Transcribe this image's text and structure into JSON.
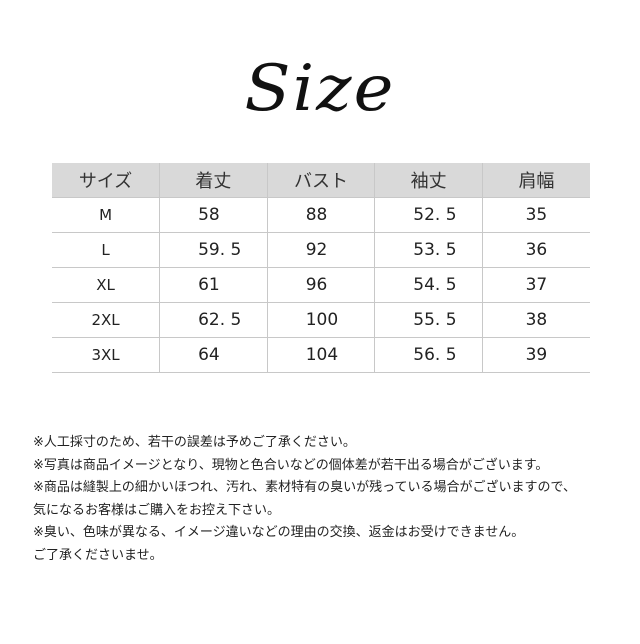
{
  "title": "Size",
  "table": {
    "headers": [
      "サイズ",
      "着丈",
      "バスト",
      "袖丈",
      "肩幅"
    ],
    "rows": [
      [
        "M",
        "58",
        "88",
        "52. 5",
        "35"
      ],
      [
        "L",
        "59. 5",
        "92",
        "53. 5",
        "36"
      ],
      [
        "XL",
        "61",
        "96",
        "54. 5",
        "37"
      ],
      [
        "2XL",
        "62. 5",
        "100",
        "55. 5",
        "38"
      ],
      [
        "3XL",
        "64",
        "104",
        "56. 5",
        "39"
      ]
    ]
  },
  "notes": [
    "※人工採寸のため、若干の誤差は予めご了承ください。",
    "※写真は商品イメージとなり、現物と色合いなどの個体差が若干出る場合がございます。",
    "※商品は縫製上の細かいほつれ、汚れ、素材特有の臭いが残っている場合がございますので、",
    "気になるお客様はご購入をお控え下さい。",
    "※臭い、色味が異なる、イメージ違いなどの理由の交換、返金はお受けできません。",
    "ご了承くださいませ。"
  ],
  "colors": {
    "header_bg": "#d9d9d9",
    "border": "#c8c8c8"
  }
}
